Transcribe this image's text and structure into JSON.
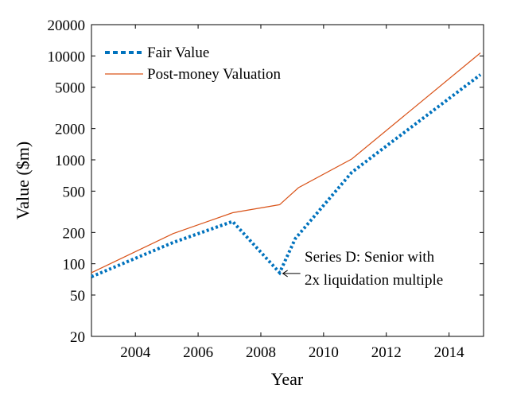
{
  "chart_data": {
    "type": "line",
    "title": "",
    "xlabel": "Year",
    "ylabel": "Value ($m)",
    "xlim": [
      2002.6,
      2015.1
    ],
    "ylim": [
      20,
      20000
    ],
    "yscale": "log",
    "grid": false,
    "legend_position": "top-left",
    "x_ticks": [
      2004,
      2006,
      2008,
      2010,
      2012,
      2014
    ],
    "x_tick_labels": [
      "2004",
      "2006",
      "2008",
      "2010",
      "2012",
      "2014"
    ],
    "y_ticks": [
      20,
      50,
      100,
      200,
      500,
      1000,
      2000,
      5000,
      10000,
      20000
    ],
    "y_tick_labels": [
      "20",
      "50",
      "100",
      "200",
      "500",
      "1000",
      "2000",
      "5000",
      "10000",
      "20000"
    ],
    "series": [
      {
        "name": "Fair Value",
        "color": "#0072BD",
        "style": "dotted",
        "points": [
          [
            2002.6,
            75
          ],
          [
            2005.2,
            160
          ],
          [
            2007.1,
            255
          ],
          [
            2008.6,
            82
          ],
          [
            2009.1,
            175
          ],
          [
            2010.9,
            760
          ],
          [
            2015.0,
            6600
          ]
        ]
      },
      {
        "name": "Post-money Valuation",
        "color": "#D95319",
        "style": "solid",
        "points": [
          [
            2002.6,
            82
          ],
          [
            2005.2,
            195
          ],
          [
            2007.1,
            310
          ],
          [
            2008.6,
            370
          ],
          [
            2009.2,
            540
          ],
          [
            2010.9,
            1020
          ],
          [
            2015.0,
            10700
          ]
        ]
      }
    ],
    "annotations": [
      {
        "lines": [
          "Series D: Senior with",
          "2x liquidation multiple"
        ],
        "x": 2008.6,
        "y": 82
      }
    ]
  }
}
